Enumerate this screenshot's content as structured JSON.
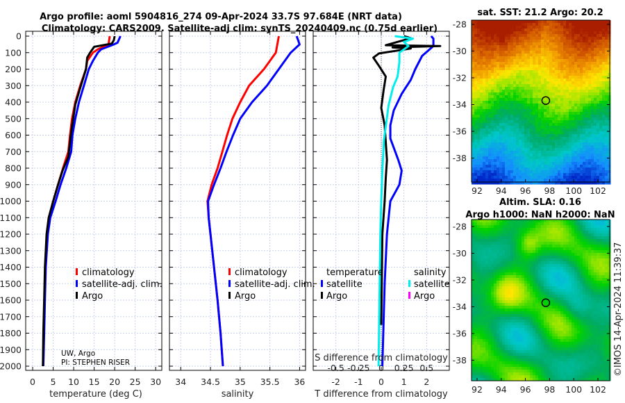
{
  "title_line1": "Argo profile: aoml 5904816_274 09-Apr-2024 33.7S 97.684E (NRT data)",
  "title_line2": "Climatology: CARS2009. Satellite-adj clim: synTS_20240409.nc (0.75d earlier)",
  "credit_line1": "UW, Argo",
  "credit_line2": "PI: STEPHEN RISER",
  "footer_stamp": "©IMOS 14-Apr-2024 11:39:37",
  "colors": {
    "climatology": "#ff0000",
    "satellite": "#0000ff",
    "argo": "#000000",
    "sal_satellite": "#00eeee",
    "sal_argo": "#ff00ff"
  },
  "chart_data": [
    {
      "type": "line",
      "title": "",
      "xlabel": "temperature (deg C)",
      "ylabel": "",
      "xlim": [
        -1.7,
        31.5
      ],
      "ylim": [
        2030,
        0
      ],
      "grid": true,
      "xticks": [
        "0",
        "5",
        "10",
        "15",
        "20",
        "25",
        "30"
      ],
      "yticks": [
        "0",
        "100",
        "200",
        "300",
        "400",
        "500",
        "600",
        "700",
        "800",
        "900",
        "1000",
        "1100",
        "1200",
        "1300",
        "1400",
        "1500",
        "1600",
        "1700",
        "1800",
        "1900",
        "2000"
      ],
      "legend": {
        "placement": "center-right",
        "entries": [
          "climatology",
          "satellite-adj. clim.",
          "Argo"
        ]
      },
      "series": [
        {
          "name": "climatology",
          "depth": [
            0,
            50,
            80,
            100,
            150,
            200,
            300,
            400,
            500,
            600,
            700,
            800,
            900,
            1000,
            1100,
            1200,
            1400,
            1600,
            1800,
            2000
          ],
          "values": [
            18.8,
            18.5,
            15.9,
            14.7,
            13.3,
            13.0,
            11.6,
            10.4,
            9.6,
            9.1,
            8.7,
            7.4,
            6.2,
            5.0,
            4.0,
            3.5,
            3.1,
            2.9,
            2.7,
            2.5
          ]
        },
        {
          "name": "satellite-adj. clim.",
          "depth": [
            0,
            40,
            55,
            80,
            100,
            150,
            200,
            300,
            400,
            500,
            600,
            700,
            800,
            900,
            1000,
            1100,
            1200,
            1400,
            1600,
            1800,
            2000
          ],
          "values": [
            21.4,
            20.7,
            19.3,
            16.7,
            15.9,
            14.7,
            13.7,
            12.5,
            11.3,
            10.4,
            9.7,
            9.4,
            8.2,
            6.8,
            5.6,
            4.3,
            3.7,
            3.2,
            3.0,
            2.8,
            2.6
          ]
        },
        {
          "name": "Argo",
          "depth": [
            0,
            25,
            45,
            65,
            100,
            130,
            200,
            330,
            415,
            580,
            730,
            815,
            900,
            1000,
            1100,
            1200,
            1400,
            1600,
            1800,
            2000
          ],
          "values": [
            20.0,
            19.8,
            19.3,
            15.0,
            14.0,
            13.3,
            13.0,
            11.4,
            10.4,
            9.4,
            8.7,
            7.3,
            6.2,
            5.0,
            3.9,
            3.4,
            3.0,
            2.8,
            2.6,
            2.5
          ]
        }
      ]
    },
    {
      "type": "line",
      "xlabel": "salinity",
      "xlim": [
        33.81,
        36.1
      ],
      "ylim": [
        2030,
        0
      ],
      "grid": true,
      "xticks": [
        "34",
        "34.5",
        "35",
        "35.5",
        "36"
      ],
      "legend": {
        "placement": "center-right",
        "entries": [
          "climatology",
          "satellite-adj. clim.",
          "Argo"
        ]
      },
      "series": [
        {
          "name": "climatology",
          "depth": [
            0,
            100,
            200,
            300,
            400,
            500,
            600,
            700,
            800,
            900,
            1000,
            1100,
            1200,
            1400,
            1600,
            1800,
            2000
          ],
          "values": [
            35.65,
            35.6,
            35.4,
            35.15,
            35.0,
            34.87,
            34.78,
            34.7,
            34.62,
            34.52,
            34.45,
            34.47,
            34.5,
            34.56,
            34.62,
            34.67,
            34.71
          ]
        },
        {
          "name": "satellite-adj. clim.",
          "depth": [
            0,
            50,
            100,
            200,
            300,
            400,
            500,
            600,
            700,
            800,
            900,
            1000,
            1100,
            1200,
            1400,
            1600,
            1800,
            2000
          ],
          "values": [
            35.95,
            36.0,
            35.85,
            35.65,
            35.45,
            35.2,
            35.0,
            34.88,
            34.77,
            34.67,
            34.56,
            34.46,
            34.47,
            34.5,
            34.56,
            34.62,
            34.67,
            34.71
          ]
        }
      ]
    },
    {
      "type": "line",
      "xlabel": "T difference from climatology",
      "x2label": "S difference from climatology",
      "xlim": [
        -3,
        3
      ],
      "x2lim": [
        -0.75,
        0.75
      ],
      "ylim": [
        2030,
        0
      ],
      "grid": true,
      "xticks": [
        "-2",
        "-1",
        "0",
        "1",
        "2"
      ],
      "x2ticks": [
        "-0.5",
        "-0.25",
        "0",
        "0.25",
        "0.5"
      ],
      "legend": {
        "temperature_header": "temperature",
        "salinity_header": "salinity",
        "entries": [
          "satellite",
          "Argo",
          "satellite",
          "Argo"
        ]
      },
      "series": [
        {
          "name": "temperature satellite",
          "axis": "T",
          "depth": [
            0,
            15,
            60,
            120,
            200,
            265,
            350,
            450,
            540,
            620,
            750,
            815,
            900,
            1000,
            1200,
            1500,
            2000
          ],
          "values": [
            2.2,
            2.3,
            2.3,
            1.8,
            1.5,
            1.3,
            0.9,
            0.55,
            0.4,
            0.4,
            0.75,
            0.9,
            0.8,
            0.4,
            0.25,
            0.15,
            0.05
          ]
        },
        {
          "name": "temperature Argo",
          "axis": "T",
          "depth": [
            0,
            12,
            55,
            60,
            68,
            75,
            105,
            130,
            180,
            245,
            330,
            435,
            540,
            750,
            860,
            1000,
            1200,
            1500,
            1750
          ],
          "values": [
            1.0,
            1.3,
            0.2,
            2.6,
            0.5,
            1.3,
            -0.1,
            -0.35,
            -0.1,
            0.2,
            0.1,
            0.0,
            0.15,
            0.25,
            0.2,
            0.15,
            0.05,
            0.02,
            0.0
          ]
        },
        {
          "name": "salinity satellite",
          "axis": "S",
          "depth": [
            0,
            15,
            35,
            60,
            100,
            160,
            245,
            310,
            420,
            630,
            840,
            1000,
            1200,
            1600,
            2000
          ],
          "values": [
            0.15,
            0.35,
            0.25,
            0.3,
            0.2,
            0.2,
            0.18,
            0.13,
            0.08,
            0.03,
            0.01,
            0.0,
            -0.01,
            -0.02,
            -0.03
          ]
        }
      ]
    },
    {
      "type": "heatmap",
      "title": "sat. SST: 21.2 Argo: 20.2",
      "xlim": [
        91.5,
        103.9
      ],
      "ylim": [
        -39.6,
        -27.7
      ],
      "xticks": [
        "92",
        "94",
        "96",
        "98",
        "100",
        "102"
      ],
      "yticks": [
        "-28",
        "-30",
        "-32",
        "-34",
        "-36",
        "-38"
      ],
      "marker": {
        "lon": 97.684,
        "lat": -33.7
      }
    },
    {
      "type": "heatmap",
      "title": "Altim. SLA: 0.16",
      "subtitle": "Argo h1000: NaN h2000: NaN",
      "xlim": [
        91.5,
        103.9
      ],
      "ylim": [
        -39.6,
        -27.7
      ],
      "xticks": [
        "92",
        "94",
        "96",
        "98",
        "100",
        "102"
      ],
      "yticks": [
        "-28",
        "-30",
        "-32",
        "-34",
        "-36",
        "-38"
      ],
      "marker": {
        "lon": 97.684,
        "lat": -33.7
      }
    }
  ]
}
